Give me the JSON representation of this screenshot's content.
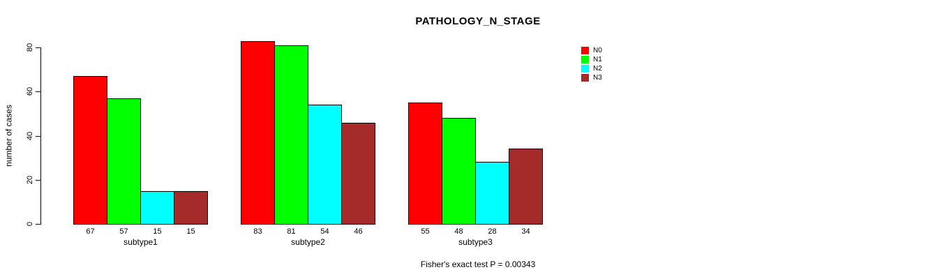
{
  "chart_data": {
    "type": "bar",
    "title": "PATHOLOGY_N_STAGE",
    "ylabel": "number of cases",
    "xlabel": "",
    "ylim": [
      0,
      80
    ],
    "yticks": [
      0,
      20,
      40,
      60,
      80
    ],
    "categories": [
      "subtype1",
      "subtype2",
      "subtype3"
    ],
    "series": [
      {
        "name": "N0",
        "color": "#ff0000",
        "values": [
          67,
          83,
          55
        ]
      },
      {
        "name": "N1",
        "color": "#00ff00",
        "values": [
          57,
          81,
          48
        ]
      },
      {
        "name": "N2",
        "color": "#00ffff",
        "values": [
          15,
          54,
          28
        ]
      },
      {
        "name": "N3",
        "color": "#a52a2a",
        "values": [
          15,
          46,
          34
        ]
      }
    ],
    "bar_value_labels": true,
    "legend_position": "right-inside",
    "grid": false,
    "footnote": "Fisher's exact test P = 0.00343"
  }
}
